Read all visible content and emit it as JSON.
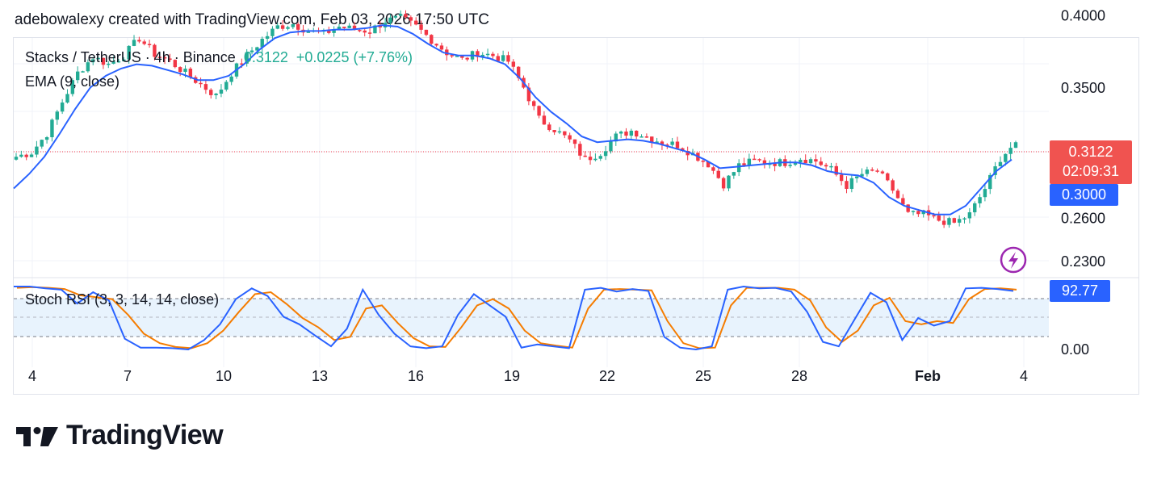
{
  "caption": "adebowalexy created with TradingView.com, Feb 03, 2026 17:50 UTC",
  "legend": {
    "symbol": "Stacks / TetherUS · 4h · Binance",
    "last": "0.3122",
    "change": "+0.0225 (+7.76%)",
    "ema": "EMA (9, close)",
    "stoch": "Stoch RSI (3, 3, 14, 14, close)"
  },
  "price_tags": {
    "last_price": "0.3122",
    "countdown": "02:09:31",
    "ema_value": "0.3000",
    "stoch_value": "92.77"
  },
  "logo_text": "TradingView",
  "colors": {
    "up": "#22ab94",
    "down": "#f23645",
    "ema": "#2962ff",
    "stoch_k": "#2962ff",
    "stoch_d": "#f57c00",
    "band_fill": "#e8f3fd",
    "last_tag": "#f05350",
    "ema_tag": "#2962ff"
  },
  "chart_data": {
    "type": "candlestick",
    "price_axis": {
      "ticks": [
        "0.4000",
        "0.3500",
        "0.2600",
        "0.2300"
      ],
      "tick_values": [
        0.4,
        0.35,
        0.26,
        0.23
      ]
    },
    "stoch_axis": {
      "ticks": [
        "0.00"
      ],
      "upper_band": 80,
      "lower_band": 20,
      "range": [
        0,
        100
      ]
    },
    "x_ticks": [
      "4",
      "7",
      "10",
      "13",
      "16",
      "19",
      "22",
      "25",
      "28",
      "Feb",
      "4"
    ],
    "closes_approx": [
      0.302,
      0.305,
      0.318,
      0.34,
      0.36,
      0.371,
      0.366,
      0.372,
      0.384,
      0.373,
      0.368,
      0.36,
      0.352,
      0.344,
      0.36,
      0.372,
      0.383,
      0.392,
      0.394,
      0.389,
      0.387,
      0.392,
      0.39,
      0.389,
      0.396,
      0.398,
      0.392,
      0.383,
      0.374,
      0.369,
      0.374,
      0.372,
      0.368,
      0.35,
      0.328,
      0.321,
      0.313,
      0.3,
      0.305,
      0.316,
      0.32,
      0.316,
      0.312,
      0.31,
      0.304,
      0.297,
      0.283,
      0.296,
      0.299,
      0.298,
      0.298,
      0.301,
      0.299,
      0.293,
      0.282,
      0.29,
      0.292,
      0.279,
      0.262,
      0.262,
      0.258,
      0.256,
      0.262,
      0.28,
      0.301,
      0.312
    ],
    "ema_approx": [
      0.28,
      0.29,
      0.302,
      0.318,
      0.335,
      0.35,
      0.358,
      0.363,
      0.366,
      0.365,
      0.362,
      0.359,
      0.355,
      0.355,
      0.358,
      0.366,
      0.376,
      0.384,
      0.388,
      0.389,
      0.389,
      0.39,
      0.39,
      0.391,
      0.393,
      0.392,
      0.387,
      0.38,
      0.374,
      0.372,
      0.372,
      0.37,
      0.366,
      0.356,
      0.343,
      0.333,
      0.325,
      0.316,
      0.312,
      0.313,
      0.314,
      0.313,
      0.311,
      0.308,
      0.305,
      0.3,
      0.294,
      0.295,
      0.296,
      0.297,
      0.298,
      0.298,
      0.296,
      0.292,
      0.29,
      0.289,
      0.284,
      0.274,
      0.268,
      0.265,
      0.262,
      0.262,
      0.268,
      0.28,
      0.292,
      0.3
    ],
    "stoch_k_approx": [
      100,
      100,
      97,
      95,
      73,
      91,
      78,
      17,
      3,
      3,
      2,
      0,
      15,
      40,
      80,
      97,
      85,
      52,
      40,
      22,
      5,
      33,
      95,
      55,
      25,
      5,
      2,
      5,
      55,
      88,
      70,
      52,
      3,
      8,
      5,
      2,
      95,
      98,
      92,
      96,
      93,
      20,
      3,
      0,
      5,
      95,
      100,
      97,
      98,
      92,
      60,
      12,
      5,
      48,
      90,
      75,
      15,
      50,
      38,
      45,
      97,
      98,
      96,
      93
    ],
    "stoch_d_approx": [
      98,
      99,
      98,
      96,
      86,
      83,
      80,
      55,
      25,
      10,
      4,
      2,
      10,
      30,
      60,
      88,
      91,
      72,
      50,
      35,
      15,
      20,
      65,
      70,
      42,
      18,
      5,
      4,
      35,
      70,
      80,
      65,
      30,
      10,
      6,
      3,
      65,
      95,
      96,
      95,
      94,
      45,
      10,
      2,
      3,
      70,
      98,
      98,
      98,
      95,
      78,
      35,
      12,
      30,
      70,
      82,
      45,
      40,
      45,
      42,
      80,
      96,
      97,
      95
    ]
  }
}
